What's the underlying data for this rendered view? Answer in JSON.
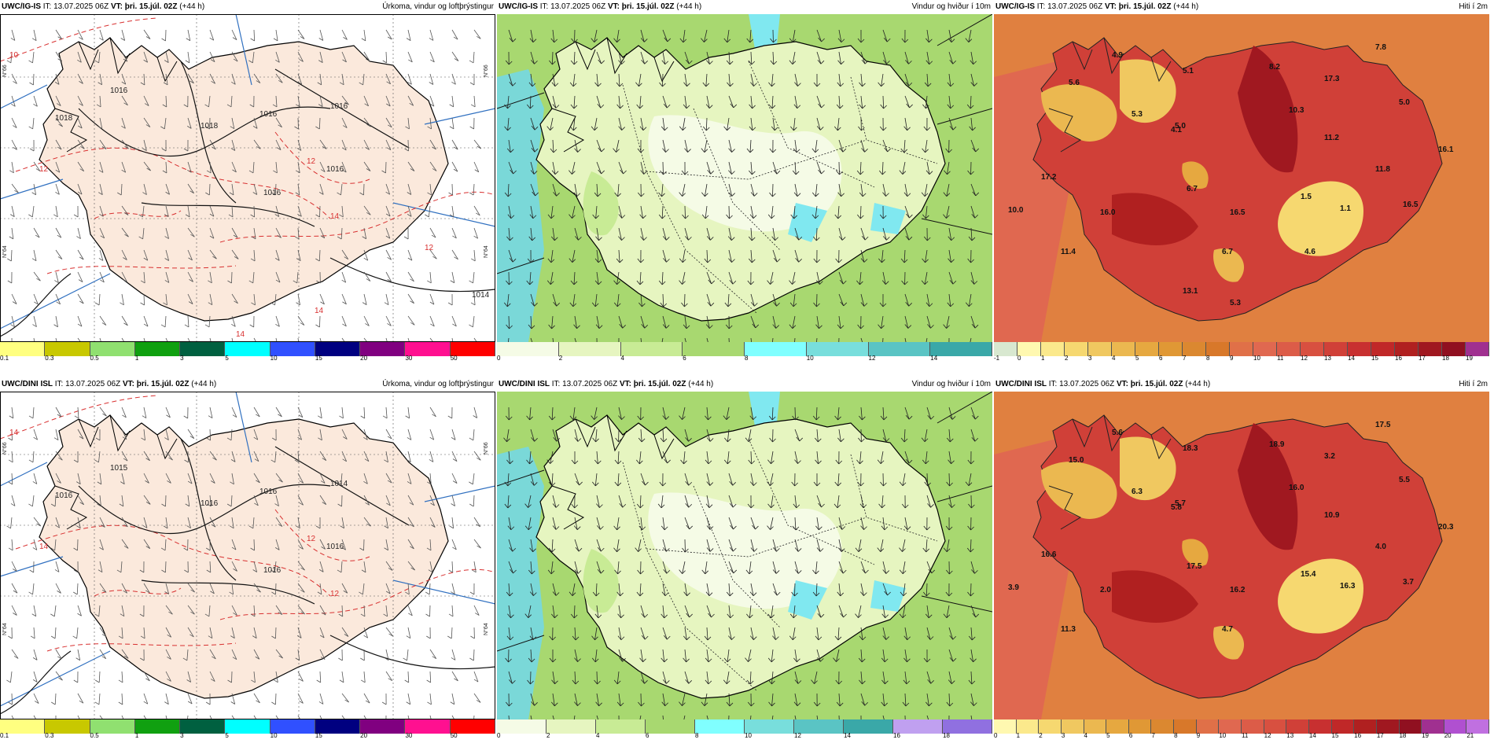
{
  "rows": [
    {
      "model": "UWC/IG-IS",
      "panels": [
        {
          "type": "precip",
          "it_label": "IT: 13.07.2025 06Z",
          "vt_label": "VT: þri. 15.júl. 02Z",
          "lead": "(+44 h)",
          "title": "Úrkoma, vindur og loftþrýstingur",
          "ticks": [
            "0.1",
            "0.3",
            "0.5",
            "1",
            "3",
            "5",
            "10",
            "15",
            "20",
            "30",
            "50"
          ],
          "colors": [
            "#ffff80",
            "#c8c800",
            "#90e070",
            "#10a010",
            "#006040",
            "#00ffff",
            "#3050ff",
            "#000080",
            "#800080",
            "#ff1090",
            "#ff0000"
          ],
          "pressure_labels": [
            "1016",
            "1018",
            "1018",
            "1016",
            "1016",
            "1016",
            "1016",
            "1014"
          ],
          "temp_labels": [
            "10",
            "12",
            "12",
            "14",
            "12",
            "14",
            "14"
          ],
          "lat_labels": [
            "N°66",
            "N°66",
            "N°64",
            "N°64"
          ],
          "map_values": []
        },
        {
          "type": "wind",
          "it_label": "IT: 13.07.2025 06Z",
          "vt_label": "VT: þri. 15.júl. 02Z",
          "lead": "(+44 h)",
          "title": "Vindur og hviður í 10m",
          "ticks": [
            "0",
            "2",
            "4",
            "6",
            "8",
            "10",
            "12",
            "14"
          ],
          "colors": [
            "#f5fbe6",
            "#e6f5c0",
            "#c8eb95",
            "#a8d870",
            "#80ffff",
            "#78dedc",
            "#5ac4c4",
            "#3aa8a8"
          ],
          "pressure_labels": [],
          "temp_labels": [],
          "lat_labels": [],
          "map_values": []
        },
        {
          "type": "temp",
          "it_label": "IT: 13.07.2025 06Z",
          "vt_label": "VT: þri. 15.júl. 02Z",
          "lead": "(+44 h)",
          "title": "Hiti í 2m",
          "ticks": [
            "-1",
            "0",
            "1",
            "2",
            "3",
            "4",
            "5",
            "6",
            "7",
            "8",
            "9",
            "10",
            "11",
            "12",
            "13",
            "14",
            "15",
            "16",
            "17",
            "18",
            "19"
          ],
          "colors": [
            "#d8e8d0",
            "#fff8b0",
            "#fbe98c",
            "#f6d870",
            "#f0c860",
            "#ebb850",
            "#e6a840",
            "#e09835",
            "#db8830",
            "#d8782a",
            "#e07048",
            "#e06850",
            "#dc5c48",
            "#d85040",
            "#d04038",
            "#c83030",
            "#c02828",
            "#b02020",
            "#a01820",
            "#901020",
            "#a03090"
          ],
          "pressure_labels": [],
          "temp_labels": [],
          "lat_labels": [],
          "map_values": [
            "4.9",
            "7.8",
            "5.6",
            "5.1",
            "8.2",
            "17.3",
            "5.3",
            "10.3",
            "5.0",
            "5.0",
            "4.1",
            "11.2",
            "16.1",
            "17.2",
            "6.7",
            "11.8",
            "1.5",
            "1.1",
            "10.0",
            "16.0",
            "16.5",
            "16.5",
            "11.4",
            "6.7",
            "4.6",
            "13.1",
            "5.3"
          ]
        }
      ]
    },
    {
      "model": "UWC/DINI ISL",
      "panels": [
        {
          "type": "precip",
          "it_label": "IT: 13.07.2025 06Z",
          "vt_label": "VT: þri. 15.júl. 02Z",
          "lead": "(+44 h)",
          "title": "Úrkoma, vindur og loftþrýstingur",
          "ticks": [
            "0.1",
            "0.3",
            "0.5",
            "1",
            "3",
            "5",
            "10",
            "15",
            "20",
            "30",
            "50"
          ],
          "colors": [
            "#ffff80",
            "#c8c800",
            "#90e070",
            "#10a010",
            "#006040",
            "#00ffff",
            "#3050ff",
            "#000080",
            "#800080",
            "#ff1090",
            "#ff0000"
          ],
          "pressure_labels": [
            "1015",
            "1016",
            "1016",
            "1016",
            "1014",
            "1016",
            "1016"
          ],
          "temp_labels": [
            "14",
            "14",
            "12",
            "12"
          ],
          "lat_labels": [
            "N°66",
            "N°66",
            "N°64",
            "N°64"
          ],
          "map_values": []
        },
        {
          "type": "wind",
          "it_label": "IT: 13.07.2025 06Z",
          "vt_label": "VT: þri. 15.júl. 02Z",
          "lead": "(+44 h)",
          "title": "Vindur og hviður í 10m",
          "ticks": [
            "0",
            "2",
            "4",
            "6",
            "8",
            "10",
            "12",
            "14",
            "16",
            "18"
          ],
          "colors": [
            "#f5fbe6",
            "#e6f5c0",
            "#c8eb95",
            "#a8d870",
            "#80ffff",
            "#78dedc",
            "#5ac4c4",
            "#3aa8a8",
            "#c0a0f0",
            "#9070e0"
          ],
          "pressure_labels": [],
          "temp_labels": [],
          "lat_labels": [],
          "map_values": []
        },
        {
          "type": "temp",
          "it_label": "IT: 13.07.2025 06Z",
          "vt_label": "VT: þri. 15.júl. 02Z",
          "lead": "(+44 h)",
          "title": "Hiti í 2m",
          "ticks": [
            "0",
            "1",
            "2",
            "3",
            "4",
            "5",
            "6",
            "7",
            "8",
            "9",
            "10",
            "11",
            "12",
            "13",
            "14",
            "15",
            "16",
            "17",
            "18",
            "19",
            "20",
            "21"
          ],
          "colors": [
            "#fff8b0",
            "#fbe98c",
            "#f6d870",
            "#f0c860",
            "#ebb850",
            "#e6a840",
            "#e09835",
            "#db8830",
            "#d8782a",
            "#e07048",
            "#e06850",
            "#dc5c48",
            "#d85040",
            "#d04038",
            "#c83030",
            "#c02828",
            "#b02020",
            "#a01820",
            "#901020",
            "#a03090",
            "#b050d0",
            "#c070e0"
          ],
          "pressure_labels": [],
          "temp_labels": [],
          "lat_labels": [],
          "map_values": [
            "5.6",
            "17.5",
            "15.0",
            "18.3",
            "18.9",
            "3.2",
            "6.3",
            "16.0",
            "5.5",
            "5.7",
            "5.8",
            "10.9",
            "20.3",
            "16.6",
            "17.5",
            "4.0",
            "15.4",
            "16.3",
            "3.9",
            "2.0",
            "16.2",
            "3.7",
            "11.3",
            "4.7"
          ]
        }
      ]
    }
  ]
}
